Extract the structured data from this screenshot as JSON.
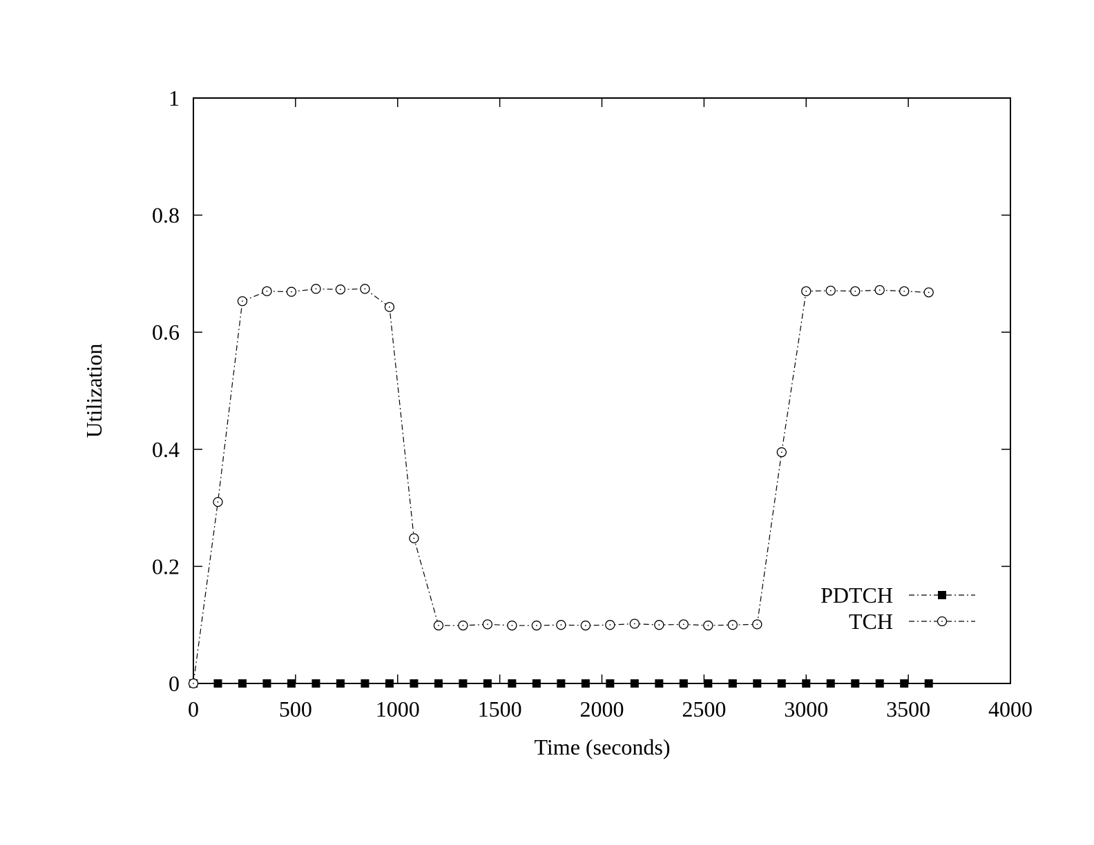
{
  "chart_data": {
    "type": "line",
    "title": "",
    "xlabel": "Time (seconds)",
    "ylabel": "Utilization",
    "xlim": [
      0,
      4000
    ],
    "ylim": [
      0,
      1
    ],
    "x_ticks": [
      0,
      500,
      1000,
      1500,
      2000,
      2500,
      3000,
      3500,
      4000
    ],
    "y_ticks": [
      0,
      0.2,
      0.4,
      0.6,
      0.8,
      1
    ],
    "x_tick_labels": [
      "0",
      "500",
      "1000",
      "1500",
      "2000",
      "2500",
      "3000",
      "3500",
      "4000"
    ],
    "y_tick_labels": [
      "0",
      "0.2",
      "0.4",
      "0.6",
      "0.8",
      "1"
    ],
    "grid": false,
    "legend_position": "bottom-right",
    "x": [
      0,
      120,
      240,
      360,
      480,
      600,
      720,
      840,
      960,
      1080,
      1200,
      1320,
      1440,
      1560,
      1680,
      1800,
      1920,
      2040,
      2160,
      2280,
      2400,
      2520,
      2640,
      2760,
      2880,
      3000,
      3120,
      3240,
      3360,
      3480,
      3600
    ],
    "series": [
      {
        "name": "PDTCH",
        "marker": "filled-square",
        "color": "#000000",
        "values": [
          0,
          0,
          0,
          0,
          0,
          0,
          0,
          0,
          0,
          0,
          0,
          0,
          0,
          0,
          0,
          0,
          0,
          0,
          0,
          0,
          0,
          0,
          0,
          0,
          0,
          0,
          0,
          0,
          0,
          0,
          0
        ]
      },
      {
        "name": "TCH",
        "marker": "open-circle",
        "color": "#000000",
        "values": [
          0,
          0.31,
          0.653,
          0.67,
          0.669,
          0.674,
          0.673,
          0.674,
          0.643,
          0.248,
          0.099,
          0.099,
          0.101,
          0.099,
          0.099,
          0.1,
          0.099,
          0.1,
          0.102,
          0.1,
          0.101,
          0.099,
          0.1,
          0.101,
          0.395,
          0.67,
          0.671,
          0.67,
          0.672,
          0.67,
          0.668
        ]
      }
    ]
  }
}
